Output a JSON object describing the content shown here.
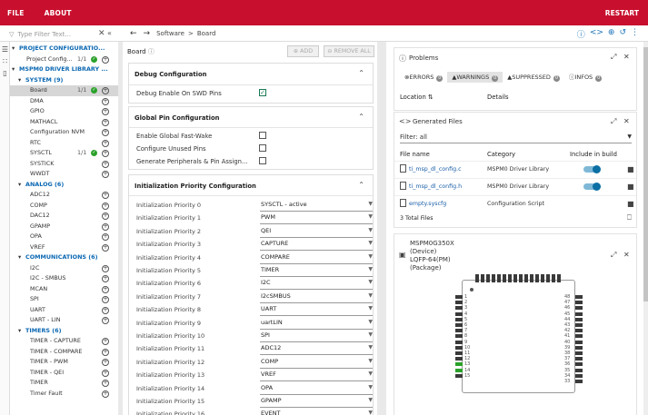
{
  "topbar": {
    "file": "FILE",
    "about": "ABOUT",
    "restart": "RESTART"
  },
  "filter": {
    "placeholder": "Type Filter Text..."
  },
  "breadcrumb": {
    "software": "Software",
    "sep": ">",
    "board": "Board"
  },
  "tree": {
    "project_header": "PROJECT CONFIGURATIO...",
    "project_item": "Project Config...",
    "project_count": "1/1",
    "driver_header": "MSPM0 DRIVER LIBRARY ...",
    "groups": [
      {
        "label": "SYSTEM (9)",
        "items": [
          {
            "label": "Board",
            "count": "1/1",
            "ok": true,
            "selected": true
          },
          {
            "label": "DMA"
          },
          {
            "label": "GPIO"
          },
          {
            "label": "MATHACL"
          },
          {
            "label": "Configuration NVM"
          },
          {
            "label": "RTC"
          },
          {
            "label": "SYSCTL",
            "count": "1/1",
            "ok": true
          },
          {
            "label": "SYSTICK"
          },
          {
            "label": "WWDT"
          }
        ]
      },
      {
        "label": "ANALOG (6)",
        "items": [
          {
            "label": "ADC12"
          },
          {
            "label": "COMP"
          },
          {
            "label": "DAC12"
          },
          {
            "label": "GPAMP"
          },
          {
            "label": "OPA"
          },
          {
            "label": "VREF"
          }
        ]
      },
      {
        "label": "COMMUNICATIONS (6)",
        "items": [
          {
            "label": "I2C"
          },
          {
            "label": "I2C - SMBUS"
          },
          {
            "label": "MCAN"
          },
          {
            "label": "SPI"
          },
          {
            "label": "UART"
          },
          {
            "label": "UART - LIN"
          }
        ]
      },
      {
        "label": "TIMERS (6)",
        "items": [
          {
            "label": "TIMER - CAPTURE"
          },
          {
            "label": "TIMER - COMPARE"
          },
          {
            "label": "TIMER - PWM"
          },
          {
            "label": "TIMER - QEI"
          },
          {
            "label": "TIMER"
          },
          {
            "label": "Timer Fault"
          }
        ]
      }
    ]
  },
  "board": {
    "title": "Board",
    "add": "ADD",
    "remove_all": "REMOVE ALL",
    "debug": {
      "title": "Debug Configuration",
      "option": "Debug Enable On SWD Pins",
      "checked": true
    },
    "pins": {
      "title": "Global Pin Configuration",
      "options": [
        "Enable Global Fast-Wake",
        "Configure Unused Pins",
        "Generate Peripherals & Pin Assign..."
      ]
    },
    "priority": {
      "title": "Initialization Priority Configuration",
      "rows": [
        {
          "label": "Initialization Priority 0",
          "value": "SYSCTL - active"
        },
        {
          "label": "Initialization Priority 1",
          "value": "PWM"
        },
        {
          "label": "Initialization Priority 2",
          "value": "QEI"
        },
        {
          "label": "Initialization Priority 3",
          "value": "CAPTURE"
        },
        {
          "label": "Initialization Priority 4",
          "value": "COMPARE"
        },
        {
          "label": "Initialization Priority 5",
          "value": "TIMER"
        },
        {
          "label": "Initialization Priority 6",
          "value": "I2C"
        },
        {
          "label": "Initialization Priority 7",
          "value": "I2cSMBUS"
        },
        {
          "label": "Initialization Priority 8",
          "value": "UART"
        },
        {
          "label": "Initialization Priority 9",
          "value": "uartLIN"
        },
        {
          "label": "Initialization Priority 10",
          "value": "SPI"
        },
        {
          "label": "Initialization Priority 11",
          "value": "ADC12"
        },
        {
          "label": "Initialization Priority 12",
          "value": "COMP"
        },
        {
          "label": "Initialization Priority 13",
          "value": "VREF"
        },
        {
          "label": "Initialization Priority 14",
          "value": "OPA"
        },
        {
          "label": "Initialization Priority 15",
          "value": "GPAMP"
        },
        {
          "label": "Initialization Priority 16",
          "value": "EVENT"
        }
      ]
    }
  },
  "problems": {
    "title": "Problems",
    "tabs": [
      {
        "label": "ERRORS",
        "count": "0"
      },
      {
        "label": "WARNINGS",
        "count": "0",
        "selected": true
      },
      {
        "label": "SUPPRESSED",
        "count": "0"
      },
      {
        "label": "INFOS",
        "count": "0"
      }
    ],
    "col_location": "Location",
    "col_details": "Details"
  },
  "generated": {
    "title": "Generated Files",
    "filter": "Filter: all",
    "col_file": "File name",
    "col_category": "Category",
    "col_include": "Include in build",
    "rows": [
      {
        "file": "ti_msp_dl_config.c",
        "category": "MSPM0 Driver Library",
        "toggle": true
      },
      {
        "file": "ti_msp_dl_config.h",
        "category": "MSPM0 Driver Library",
        "toggle": true
      },
      {
        "file": "empty.syscfg",
        "category": "Configuration Script",
        "toggle": false
      }
    ],
    "total": "3 Total Files"
  },
  "device": {
    "name": "MSPM0G350X",
    "type": "(Device)",
    "package": "LQFP-64(PM)",
    "package_label": "(Package)",
    "left_pins": [
      "1",
      "2",
      "3",
      "4",
      "5",
      "6",
      "7",
      "8",
      "9",
      "10",
      "11",
      "12",
      "13",
      "14",
      "15"
    ],
    "right_pins": [
      "48",
      "47",
      "46",
      "45",
      "44",
      "43",
      "42",
      "41",
      "40",
      "39",
      "38",
      "37",
      "36",
      "35",
      "34",
      "33"
    ]
  }
}
